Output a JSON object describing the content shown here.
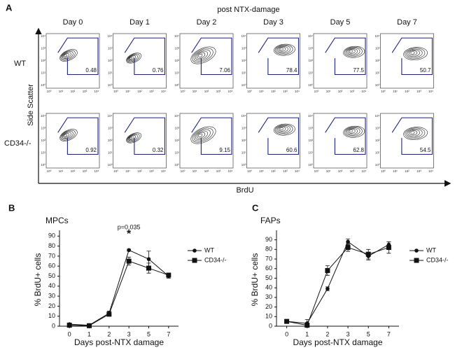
{
  "panel_a": {
    "panel_label": "A",
    "title": "post NTX-damage",
    "columns": [
      "Day 0",
      "Day 1",
      "Day 2",
      "Day 3",
      "Day 5",
      "Day 7"
    ],
    "rows": [
      {
        "label": "WT",
        "gate_values": [
          0.48,
          0.76,
          7.06,
          78.4,
          77.5,
          50.7
        ]
      },
      {
        "label": "CD34-/-",
        "gate_values": [
          0.92,
          0.32,
          9.15,
          60.6,
          62.8,
          54.5
        ]
      }
    ],
    "y_label": "Side Scatter",
    "x_label": "BrdU",
    "axis_ticks": [
      "10⁰",
      "10¹",
      "10²",
      "10³",
      "10⁴"
    ]
  },
  "chart_data": [
    {
      "type": "line",
      "panel_label": "B",
      "title": "MPCs",
      "x_label": "Days post-NTX damage",
      "y_label": "% BrdU+ cells",
      "categories": [
        "0",
        "1",
        "2",
        "3",
        "5",
        "7"
      ],
      "series": [
        {
          "name": "WT",
          "color": "#111111",
          "marker": "circle",
          "values": [
            2,
            1,
            13,
            76,
            67,
            50
          ],
          "errors": [
            1,
            1,
            2,
            1,
            8,
            2
          ]
        },
        {
          "name": "CD34-/-",
          "color": "#111111",
          "marker": "square",
          "values": [
            1,
            0.5,
            12,
            65,
            58,
            51
          ],
          "errors": [
            1,
            1,
            2,
            4,
            5,
            2
          ]
        }
      ],
      "ylim": [
        0,
        93
      ],
      "yticks": [
        0,
        10,
        20,
        30,
        40,
        50,
        60,
        70,
        80,
        90
      ],
      "annotations": [
        "p=0.035",
        "*"
      ]
    },
    {
      "type": "line",
      "panel_label": "C",
      "title": "FAPs",
      "x_label": "Days post-NTX damage",
      "y_label": "% BrdU+ cells",
      "categories": [
        "0",
        "1",
        "2",
        "3",
        "5",
        "7"
      ],
      "series": [
        {
          "name": "WT",
          "color": "#111111",
          "marker": "circle",
          "values": [
            5,
            3,
            39,
            88,
            73,
            85
          ],
          "errors": [
            1,
            4,
            2,
            3,
            4,
            3
          ]
        },
        {
          "name": "CD34-/-",
          "color": "#111111",
          "marker": "square",
          "values": [
            5,
            1,
            58,
            82,
            75,
            82
          ],
          "errors": [
            1,
            1,
            5,
            4,
            5,
            6
          ]
        }
      ],
      "ylim": [
        0,
        97
      ],
      "yticks": [
        0,
        10,
        20,
        30,
        40,
        50,
        60,
        70,
        80,
        90
      ]
    }
  ]
}
